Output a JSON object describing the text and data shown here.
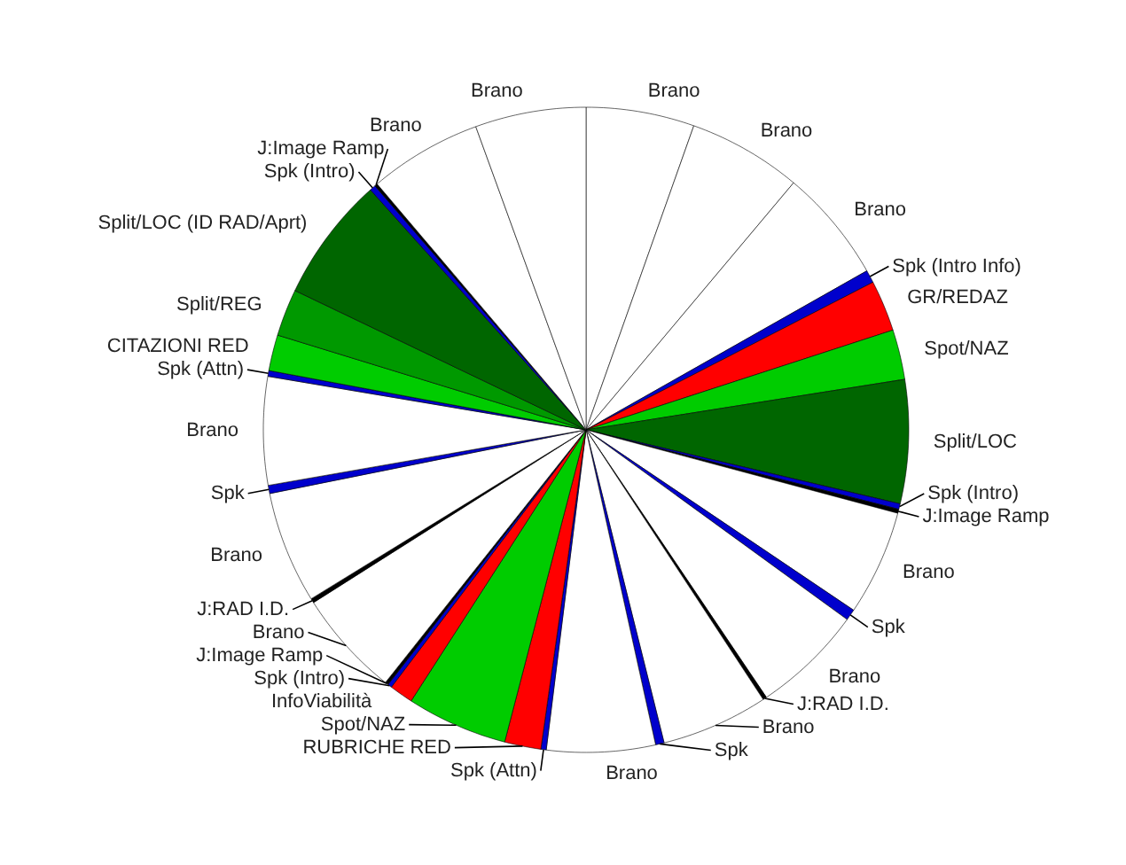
{
  "chart_data": {
    "type": "pie",
    "categories": [
      "Brano",
      "Brano",
      "Brano",
      "Spk (Intro Info)",
      "GR/REDAZ",
      "Spot/NAZ",
      "Split/LOC",
      "Spk (Intro)",
      "J:Image Ramp",
      "Brano",
      "Spk",
      "Brano",
      "J:RAD I.D.",
      "Brano",
      "Spk",
      "Brano",
      "Spk (Attn)",
      "RUBRICHE RED",
      "Spot/NAZ",
      "InfoViabilità",
      "Spk (Intro)",
      "J:Image Ramp",
      "Brano",
      "J:RAD I.D.",
      "Brano",
      "Spk",
      "Brano",
      "Spk (Attn)",
      "CITAZIONI RED",
      "Split/REG",
      "Split/LOC (ID RAD/Aprt)",
      "Spk (Intro)",
      "J:Image Ramp",
      "Brano",
      "Brano"
    ],
    "values": [
      5.42,
      5.7,
      5.68,
      0.64,
      2.56,
      2.5,
      6.19,
      0.28,
      0.2,
      5.28,
      0.56,
      5.56,
      0.19,
      5.36,
      0.43,
      5.43,
      0.27,
      1.82,
      5.06,
      1.19,
      0.21,
      0.16,
      5.33,
      0.22,
      5.61,
      0.41,
      5.41,
      0.29,
      1.8,
      2.36,
      6.25,
      0.3,
      0.14,
      5.66,
      5.55
    ],
    "colors": [
      "#ffffff",
      "#ffffff",
      "#ffffff",
      "#0000cc",
      "#ff0000",
      "#00cc00",
      "#006600",
      "#0000cc",
      "#000000",
      "#ffffff",
      "#0000cc",
      "#ffffff",
      "#000000",
      "#ffffff",
      "#0000cc",
      "#ffffff",
      "#0000cc",
      "#ff0000",
      "#00cc00",
      "#ff0000",
      "#0000cc",
      "#000000",
      "#ffffff",
      "#000000",
      "#ffffff",
      "#0000cc",
      "#ffffff",
      "#0000cc",
      "#00cc00",
      "#009900",
      "#006600",
      "#0000cc",
      "#000000",
      "#ffffff",
      "#ffffff"
    ]
  }
}
